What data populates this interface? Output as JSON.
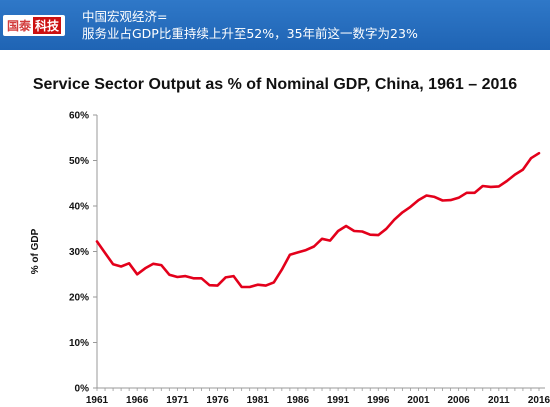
{
  "banner": {
    "logo_left": "国泰",
    "logo_right": "科技",
    "line1": "中国宏观经济=",
    "line2": "服务业占GDP比重持续上升至52%，35年前这一数字为23%"
  },
  "colors": {
    "banner": "#1f64b4",
    "line": "#e3001b",
    "axis": "#999999"
  },
  "chart_data": {
    "type": "line",
    "title": "Service Sector Output as % of Nominal GDP, China, 1961 – 2016",
    "ylabel": "% of GDP",
    "xlabel": "",
    "ylim": [
      0,
      60
    ],
    "y_ticks": [
      0,
      10,
      20,
      30,
      40,
      50,
      60
    ],
    "y_tick_labels": [
      "0%",
      "10%",
      "20%",
      "30%",
      "40%",
      "50%",
      "60%"
    ],
    "x_ticks": [
      1961,
      1966,
      1971,
      1976,
      1981,
      1986,
      1991,
      1996,
      2001,
      2006,
      2011,
      2016
    ],
    "x_tick_labels": [
      "1961",
      "1966",
      "1971",
      "1976",
      "1981",
      "1986",
      "1991",
      "1996",
      "2001",
      "2006",
      "2011",
      "2016"
    ],
    "grid": false,
    "series": [
      {
        "x": [
          1961,
          1962,
          1963,
          1964,
          1965,
          1966,
          1967,
          1968,
          1969,
          1970,
          1971,
          1972,
          1973,
          1974,
          1975,
          1976,
          1977,
          1978,
          1979,
          1980,
          1981,
          1982,
          1983,
          1984,
          1985,
          1986,
          1987,
          1988,
          1989,
          1990,
          1991,
          1992,
          1993,
          1994,
          1995,
          1996,
          1997,
          1998,
          1999,
          2000,
          2001,
          2002,
          2003,
          2004,
          2005,
          2006,
          2007,
          2008,
          2009,
          2010,
          2011,
          2012,
          2013,
          2014,
          2015,
          2016
        ],
        "y": [
          32.2,
          29.7,
          27.2,
          26.7,
          27.4,
          25.0,
          26.3,
          27.3,
          27.0,
          24.9,
          24.4,
          24.6,
          24.1,
          24.1,
          22.6,
          22.5,
          24.3,
          24.6,
          22.2,
          22.2,
          22.7,
          22.5,
          23.2,
          26.0,
          29.3,
          29.8,
          30.3,
          31.1,
          32.8,
          32.4,
          34.5,
          35.6,
          34.5,
          34.4,
          33.7,
          33.6,
          35.0,
          37.0,
          38.6,
          39.8,
          41.3,
          42.3,
          42.0,
          41.2,
          41.3,
          41.8,
          42.9,
          42.9,
          44.4,
          44.2,
          44.3,
          45.5,
          46.9,
          48.0,
          50.5,
          51.6
        ]
      }
    ]
  }
}
